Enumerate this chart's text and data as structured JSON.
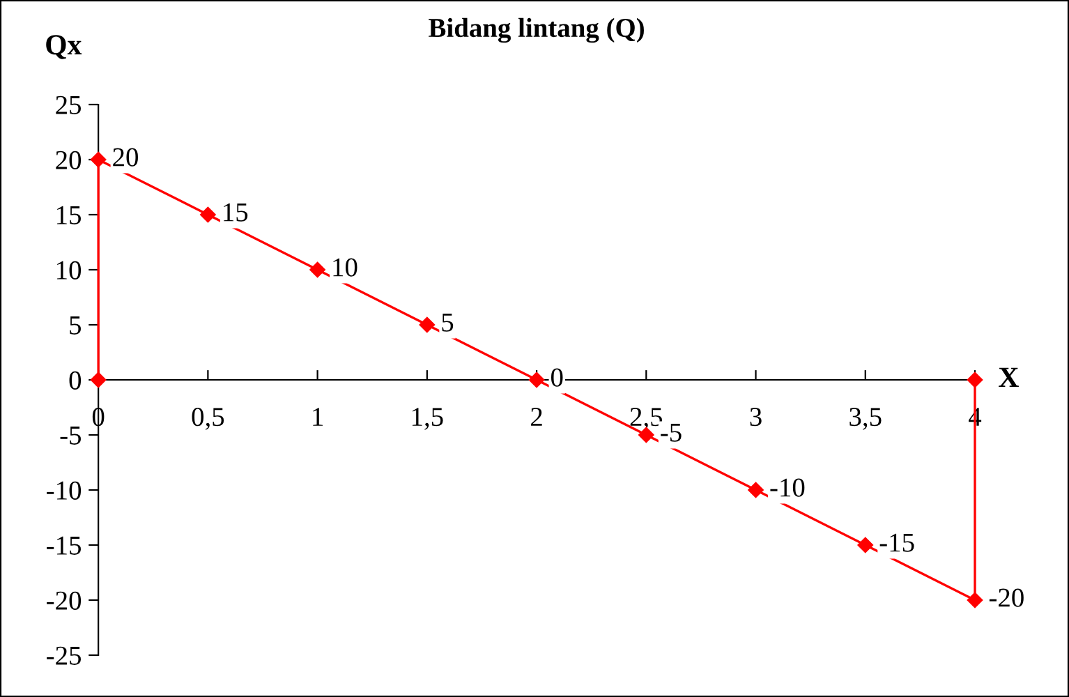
{
  "chart_data": {
    "type": "line",
    "title": "Bidang lintang (Q)",
    "ylabel": "Qx",
    "xlabel": "X",
    "x": [
      0,
      0,
      0.5,
      1,
      1.5,
      2,
      2.5,
      3,
      3.5,
      4,
      4
    ],
    "series": [
      {
        "color": "#ff0000",
        "values": [
          0,
          20,
          15,
          10,
          5,
          0,
          -5,
          -10,
          -15,
          -20,
          0
        ],
        "value_labels": [
          null,
          "20",
          "15",
          "10",
          "5",
          "0",
          "-5",
          "-10",
          "-15",
          "-20",
          null
        ]
      }
    ],
    "xlim": [
      0,
      4
    ],
    "ylim": [
      -25,
      25
    ],
    "xticks": [
      0,
      {
        "value": 0.5,
        "label": "0,5"
      },
      1,
      {
        "value": 1.5,
        "label": "1,5"
      },
      2,
      {
        "value": 2.5,
        "label": "2,5"
      },
      3,
      {
        "value": 3.5,
        "label": "3,5"
      },
      4
    ],
    "yticks": [
      -25,
      -20,
      -15,
      -10,
      -5,
      0,
      5,
      10,
      15,
      20,
      25
    ],
    "marker": "diamond",
    "line_style": "solid",
    "grid": false,
    "legend": false
  }
}
